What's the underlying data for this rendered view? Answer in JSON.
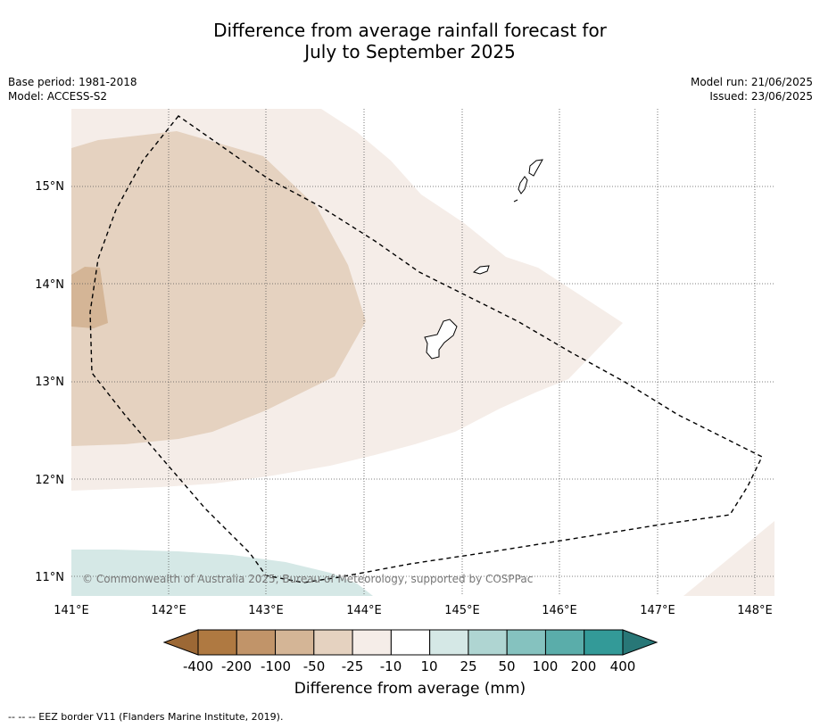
{
  "header": {
    "title_line1": "Difference from average rainfall forecast for",
    "title_line2": "July to September 2025",
    "base_period": "Base period: 1981-2018",
    "model": "Model: ACCESS-S2",
    "model_run": "Model run: 21/06/2025",
    "issued": "Issued: 23/06/2025"
  },
  "map": {
    "lat_labels": [
      "15°N",
      "14°N",
      "13°N",
      "12°N",
      "11°N"
    ],
    "lon_labels": [
      "141°E",
      "142°E",
      "143°E",
      "144°E",
      "145°E",
      "146°E",
      "147°E",
      "148°E"
    ],
    "copyright": "© Commonwealth of Australia 2025, Bureau of Meteorology, supported by COSPPac",
    "fill_colors": {
      "minus10_to_minus25": "#f5ede8",
      "minus25_to_minus50": "#e5d2c0",
      "minus50_to_minus100": "#d4b596",
      "plus10_to_plus25": "#d5e8e6",
      "land_outline": "#000000"
    }
  },
  "colorbar": {
    "tick_labels": [
      "-400",
      "-200",
      "-100",
      "-50",
      "-25",
      "-10",
      "10",
      "25",
      "50",
      "100",
      "200",
      "400"
    ],
    "colors": [
      "#9c6835",
      "#af7941",
      "#c19469",
      "#d4b596",
      "#e5d2c0",
      "#f5ede8",
      "#ffffff",
      "#d5e8e6",
      "#afd5d2",
      "#85c2bf",
      "#5aadaa",
      "#339a98",
      "#287777"
    ],
    "title": "Difference from average (mm)"
  },
  "footer": {
    "legend": "--  --  -- EEZ border V11 (Flanders Marine Institute, 2019)."
  }
}
